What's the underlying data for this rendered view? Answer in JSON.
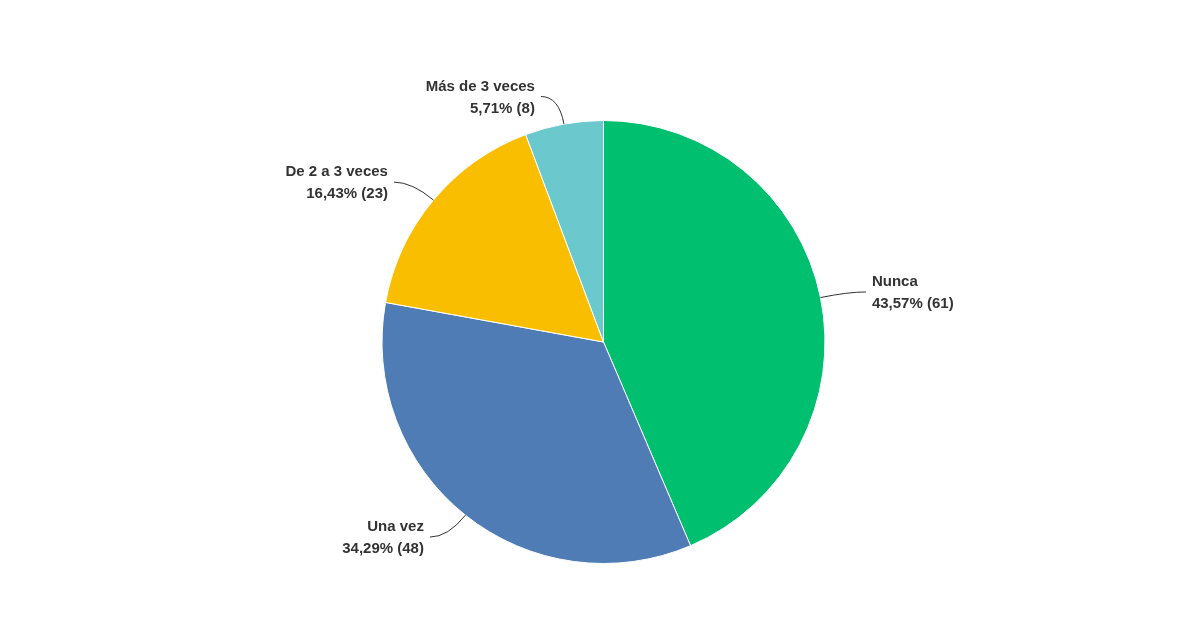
{
  "chart_data": {
    "type": "pie",
    "categories": [
      "Nunca",
      "Una vez",
      "De 2 a 3 veces",
      "Más de 3 veces"
    ],
    "values": [
      61,
      48,
      23,
      8
    ],
    "colors": [
      "#00bf6f",
      "#507cb6",
      "#f9be00",
      "#6bc8cd"
    ],
    "value_labels": [
      "43,57% (61)",
      "34,29% (48)",
      "16,43% (23)",
      "5,71% (8)"
    ]
  }
}
